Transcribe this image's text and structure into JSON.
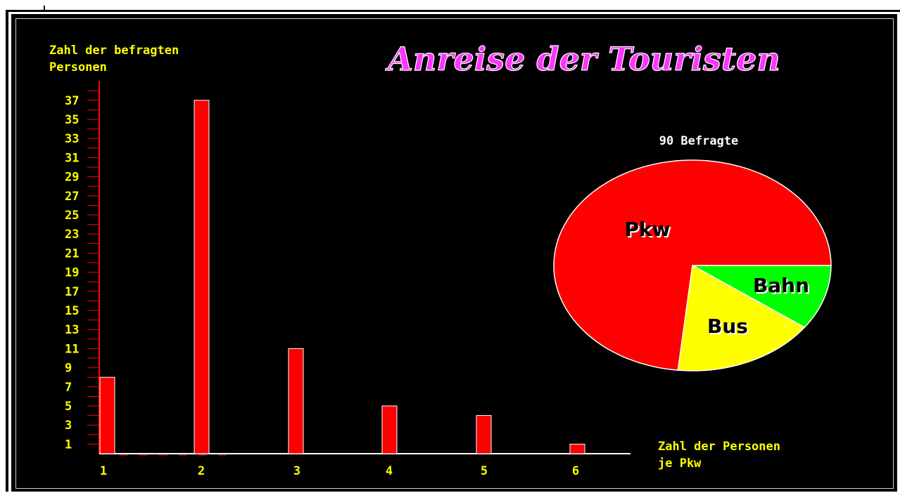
{
  "chart_data": [
    {
      "type": "bar",
      "title": "Anreise der Touristen",
      "ylabel_line1": "Zahl der befragten",
      "ylabel_line2": "Personen",
      "xlabel_line1": "Zahl der Personen",
      "xlabel_line2": "je Pkw",
      "categories": [
        "1",
        "2",
        "3",
        "4",
        "5",
        "6"
      ],
      "values": [
        8,
        37,
        11,
        5,
        4,
        1
      ],
      "yticks": [
        "37",
        "35",
        "33",
        "31",
        "29",
        "27",
        "25",
        "23",
        "21",
        "19",
        "17",
        "15",
        "13",
        "11",
        "9",
        "7",
        "5",
        "3",
        "1"
      ],
      "ylim": [
        0,
        38
      ],
      "bar_color": "#ff0000",
      "label_color": "#ffff00",
      "title_color": "#ff33ff"
    },
    {
      "type": "pie",
      "subtitle": "90 Befragte",
      "slices": [
        {
          "label": "Pkw",
          "value": 66,
          "color": "#ff0000"
        },
        {
          "label": "Bus",
          "value": 15,
          "color": "#ffff00"
        },
        {
          "label": "Bahn",
          "value": 9,
          "color": "#00ff00"
        }
      ]
    }
  ]
}
